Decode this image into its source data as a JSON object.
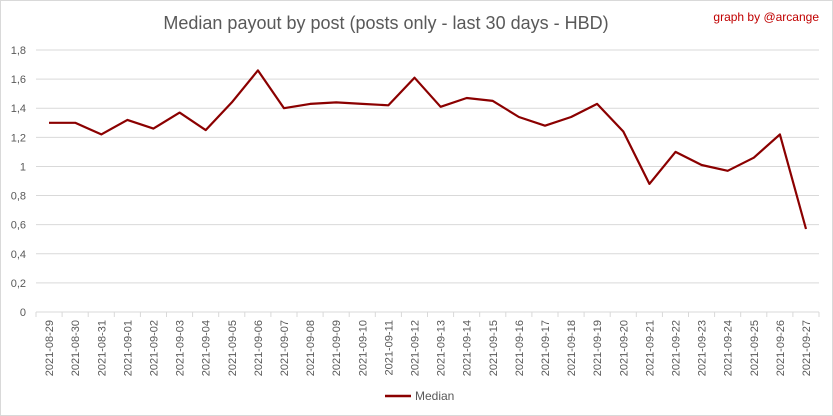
{
  "chart_data": {
    "type": "line",
    "title": "Median payout by post (posts only - last 30 days - HBD)",
    "credit": "graph by @arcange",
    "xlabel": "",
    "ylabel": "",
    "ylim": [
      0,
      1.8
    ],
    "y_ticks": [
      "0",
      "0,2",
      "0,4",
      "0,6",
      "0,8",
      "1",
      "1,2",
      "1,4",
      "1,6",
      "1,8"
    ],
    "grid": true,
    "legend_position": "bottom",
    "categories": [
      "2021-08-29",
      "2021-08-30",
      "2021-08-31",
      "2021-09-01",
      "2021-09-02",
      "2021-09-03",
      "2021-09-04",
      "2021-09-05",
      "2021-09-06",
      "2021-09-07",
      "2021-09-08",
      "2021-09-09",
      "2021-09-10",
      "2021-09-11",
      "2021-09-12",
      "2021-09-13",
      "2021-09-14",
      "2021-09-15",
      "2021-09-16",
      "2021-09-17",
      "2021-09-18",
      "2021-09-19",
      "2021-09-20",
      "2021-09-21",
      "2021-09-22",
      "2021-09-23",
      "2021-09-24",
      "2021-09-25",
      "2021-09-26",
      "2021-09-27"
    ],
    "series": [
      {
        "name": "Median",
        "color": "#8b0000",
        "values": [
          1.3,
          1.3,
          1.22,
          1.32,
          1.26,
          1.37,
          1.25,
          1.44,
          1.66,
          1.4,
          1.43,
          1.44,
          1.43,
          1.42,
          1.61,
          1.41,
          1.47,
          1.45,
          1.34,
          1.28,
          1.34,
          1.43,
          1.24,
          0.88,
          1.1,
          1.01,
          0.97,
          1.06,
          1.22,
          0.57
        ]
      }
    ]
  }
}
